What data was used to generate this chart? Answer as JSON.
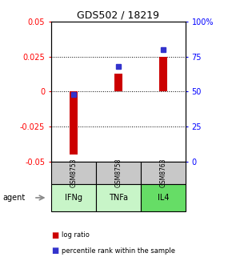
{
  "title": "GDS502 / 18219",
  "samples": [
    "GSM8753",
    "GSM8758",
    "GSM8763"
  ],
  "agents": [
    "IFNg",
    "TNFa",
    "IL4"
  ],
  "log_ratios": [
    -0.045,
    0.013,
    0.025
  ],
  "percentile_ranks": [
    48,
    68,
    80
  ],
  "ylim_left": [
    -0.05,
    0.05
  ],
  "ylim_right": [
    0,
    100
  ],
  "yticks_left": [
    -0.05,
    -0.025,
    0,
    0.025,
    0.05
  ],
  "yticks_right": [
    0,
    25,
    50,
    75,
    100
  ],
  "ytick_labels_right": [
    "0",
    "25",
    "50",
    "75",
    "100%"
  ],
  "bar_color": "#cc0000",
  "percentile_color": "#3333cc",
  "sample_bg": "#c8c8c8",
  "agent_colors": [
    "#c8f5c8",
    "#c8f5c8",
    "#66dd66"
  ],
  "legend_items": [
    "log ratio",
    "percentile rank within the sample"
  ],
  "bar_width": 0.18
}
